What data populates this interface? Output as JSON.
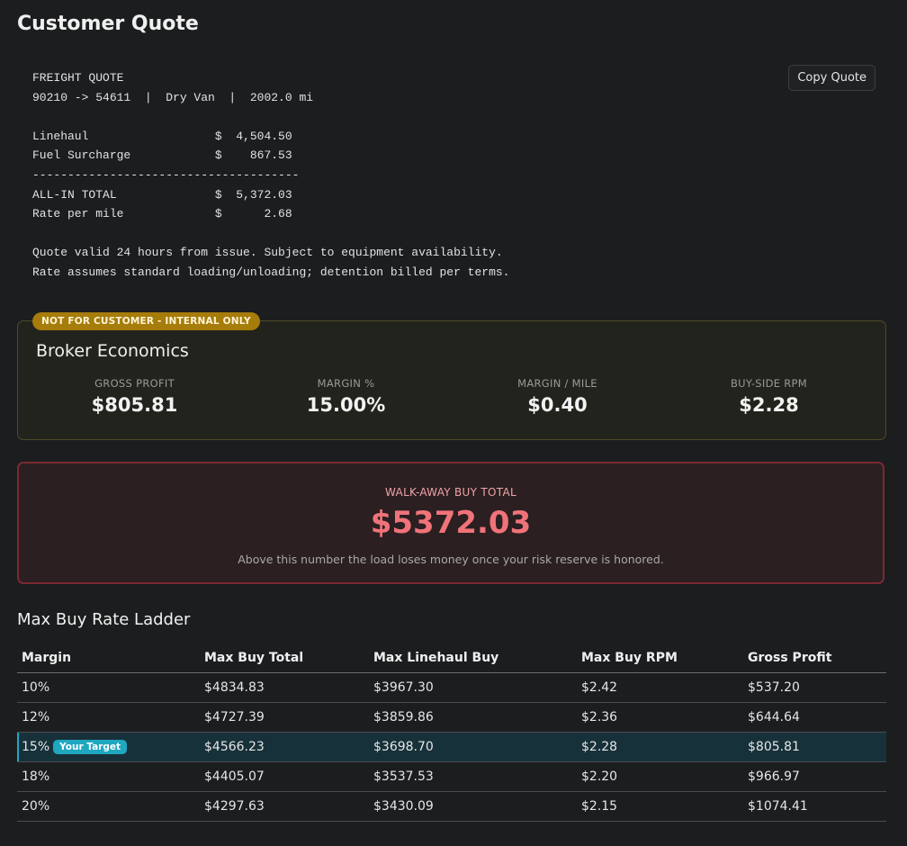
{
  "page": {
    "title": "Customer Quote"
  },
  "quote": {
    "lines": [
      "FREIGHT QUOTE",
      "90210 -> 54611  |  Dry Van  |  2002.0 mi",
      "",
      "Linehaul                  $  4,504.50",
      "Fuel Surcharge            $    867.53",
      "--------------------------------------",
      "ALL-IN TOTAL              $  5,372.03",
      "Rate per mile             $      2.68",
      "",
      "Quote valid 24 hours from issue. Subject to equipment availability.",
      "Rate assumes standard loading/unloading; detention billed per terms."
    ],
    "copy_label": "Copy Quote"
  },
  "broker": {
    "badge": "NOT FOR CUSTOMER - INTERNAL ONLY",
    "title": "Broker Economics",
    "metrics": [
      {
        "label": "GROSS PROFIT",
        "value": "$805.81"
      },
      {
        "label": "MARGIN %",
        "value": "15.00%"
      },
      {
        "label": "MARGIN / MILE",
        "value": "$0.40"
      },
      {
        "label": "BUY-SIDE RPM",
        "value": "$2.28"
      }
    ]
  },
  "walkaway": {
    "label": "WALK-AWAY BUY TOTAL",
    "value": "$5372.03",
    "note": "Above this number the load loses money once your risk reserve is honored."
  },
  "ladder": {
    "title": "Max Buy Rate Ladder",
    "target_badge": "Your Target",
    "headers": [
      "Margin",
      "Max Buy Total",
      "Max Linehaul Buy",
      "Max Buy RPM",
      "Gross Profit"
    ],
    "rows": [
      {
        "margin": "10%",
        "total": "$4834.83",
        "linehaul": "$3967.30",
        "rpm": "$2.42",
        "profit": "$537.20",
        "target": false
      },
      {
        "margin": "12%",
        "total": "$4727.39",
        "linehaul": "$3859.86",
        "rpm": "$2.36",
        "profit": "$644.64",
        "target": false
      },
      {
        "margin": "15%",
        "total": "$4566.23",
        "linehaul": "$3698.70",
        "rpm": "$2.28",
        "profit": "$805.81",
        "target": true
      },
      {
        "margin": "18%",
        "total": "$4405.07",
        "linehaul": "$3537.53",
        "rpm": "$2.20",
        "profit": "$966.97",
        "target": false
      },
      {
        "margin": "20%",
        "total": "$4297.63",
        "linehaul": "$3430.09",
        "rpm": "$2.15",
        "profit": "$1074.41",
        "target": false
      }
    ]
  },
  "colors": {
    "background": "#1b1d1f",
    "internal_badge": "#a67c0a",
    "walkaway_accent": "#f0737a",
    "target_accent": "#1fa7c0"
  }
}
